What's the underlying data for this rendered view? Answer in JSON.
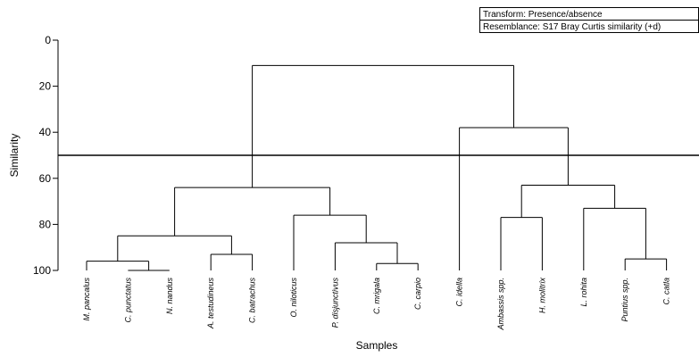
{
  "chart_data": {
    "type": "dendrogram",
    "legend_lines": [
      "Transform: Presence/absence",
      "Resemblance: S17 Bray Curtis similarity (+d)"
    ],
    "y_label": "Similarity",
    "x_label": "Samples",
    "ylim": [
      0,
      100
    ],
    "y_reversed": true,
    "yticks": [
      0,
      20,
      40,
      60,
      80,
      100
    ],
    "cutoff": 50,
    "leaves": [
      "M. pancalus",
      "C. punctatus",
      "N. nandus",
      "A. testudineus",
      "C. batrachus",
      "O. niloticus",
      "P. disjunctivus",
      "C. mrigala",
      "C. carpio",
      "C. idella",
      "Ambassis spp.",
      "H. molitrix",
      "L. rohita",
      "Puntius spp.",
      "C. catla"
    ],
    "merges": [
      {
        "children": [
          1,
          2
        ],
        "similarity": 100
      },
      {
        "children": [
          0,
          15
        ],
        "similarity": 96
      },
      {
        "children": [
          3,
          4
        ],
        "similarity": 93
      },
      {
        "children": [
          16,
          17
        ],
        "similarity": 85
      },
      {
        "children": [
          7,
          8
        ],
        "similarity": 97
      },
      {
        "children": [
          6,
          19
        ],
        "similarity": 88
      },
      {
        "children": [
          5,
          20
        ],
        "similarity": 76
      },
      {
        "children": [
          18,
          21
        ],
        "similarity": 64
      },
      {
        "children": [
          10,
          11
        ],
        "similarity": 77
      },
      {
        "children": [
          13,
          14
        ],
        "similarity": 95
      },
      {
        "children": [
          12,
          24
        ],
        "similarity": 73
      },
      {
        "children": [
          23,
          25
        ],
        "similarity": 63
      },
      {
        "children": [
          9,
          26
        ],
        "similarity": 38
      },
      {
        "children": [
          22,
          27
        ],
        "similarity": 11
      }
    ]
  }
}
